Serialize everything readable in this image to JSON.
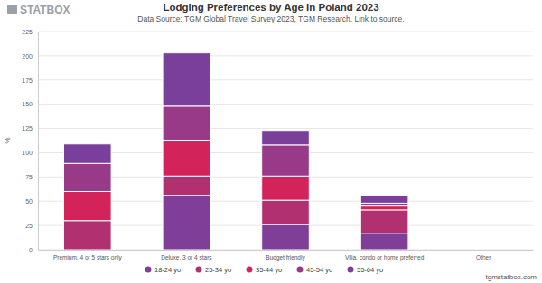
{
  "chart_data": {
    "type": "bar",
    "stacked": true,
    "title": "Lodging Preferences by Age in Poland 2023",
    "subtitle": "Data Source: TGM Global Travel Survey 2023, TGM Research. Link to source.",
    "annotations": [
      "STATBOX",
      "tgmstatbox.com"
    ],
    "y_label": "%",
    "categories": [
      "Premium, 4 or 5 stars only",
      "Deluxe, 3 or 4 stars",
      "Budget friendly",
      "Villa, condo or home preferred",
      "Other"
    ],
    "series": [
      {
        "name": "18-24 yo",
        "color": "#7f3f98",
        "values": [
          0,
          56,
          26,
          17,
          0
        ]
      },
      {
        "name": "25-34 yo",
        "color": "#b03070",
        "values": [
          30,
          20,
          25,
          24,
          0
        ]
      },
      {
        "name": "35-44 yo",
        "color": "#d2245a",
        "values": [
          30,
          37,
          25,
          4,
          0
        ]
      },
      {
        "name": "45-54 yo",
        "color": "#983a88",
        "values": [
          29,
          35,
          32,
          3,
          0
        ]
      },
      {
        "name": "55-64 yo",
        "color": "#7a3f9a",
        "values": [
          20,
          55,
          15,
          8,
          0
        ]
      }
    ],
    "ylim": [
      0,
      225
    ],
    "yticks": [
      0,
      25,
      50,
      75,
      100,
      125,
      150,
      175,
      200,
      225
    ],
    "grid": true,
    "legend": "bottom"
  }
}
